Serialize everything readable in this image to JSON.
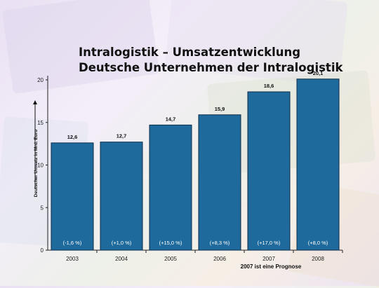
{
  "colors": {
    "bar": "#1f6a9c",
    "bar_edge": "#0d2f4a",
    "axis": "#222222"
  },
  "chart_data": {
    "type": "bar",
    "title": "Intralogistik – Umsatzentwicklung",
    "subtitle": "Deutsche Unternehmen der Intralogistik",
    "ylabel": "Deutscher Umsatz in Mrd. Euro",
    "xlabel": "",
    "ylim": [
      0,
      20
    ],
    "yticks": [
      "0",
      "5",
      "10",
      "15",
      "20"
    ],
    "grid": false,
    "categories": [
      "2003",
      "2004",
      "2005",
      "2006",
      "2007",
      "2008"
    ],
    "values": [
      12.6,
      12.7,
      14.7,
      15.9,
      18.6,
      20.1
    ],
    "value_labels": [
      "12,6",
      "12,7",
      "14,7",
      "15,9",
      "18,6",
      "20,1"
    ],
    "growth_labels": [
      "(-1,6 %)",
      "(+1,0 %)",
      "(+15,0 %)",
      "(+8,3 %)",
      "(+17,0 %)",
      "(+8,0 %)"
    ],
    "annotation": "2007 ist eine Prognose"
  }
}
